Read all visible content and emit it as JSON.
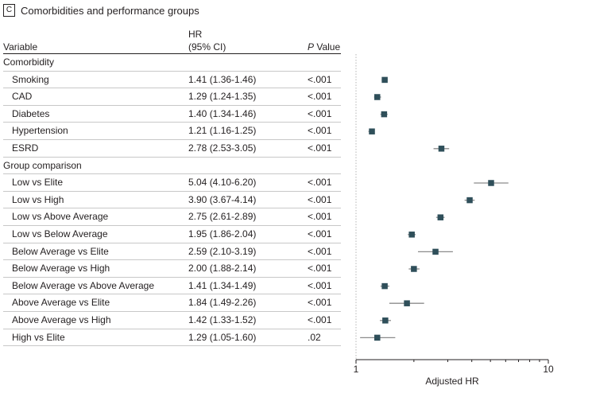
{
  "panel": {
    "letter": "C",
    "title": "Comorbidities and performance groups"
  },
  "table": {
    "headers": {
      "variable": "Variable",
      "hr_line1": "HR",
      "hr_line2": "(95% CI)",
      "p_italic": "P",
      "p_rest": " Value"
    },
    "rows": [
      {
        "type": "section",
        "label": "Comorbidity"
      },
      {
        "type": "item",
        "label": "Smoking",
        "hr_text": "1.41 (1.36-1.46)",
        "p": "<.001"
      },
      {
        "type": "item",
        "label": "CAD",
        "hr_text": "1.29 (1.24-1.35)",
        "p": "<.001"
      },
      {
        "type": "item",
        "label": "Diabetes",
        "hr_text": "1.40 (1.34-1.46)",
        "p": "<.001"
      },
      {
        "type": "item",
        "label": "Hypertension",
        "hr_text": "1.21 (1.16-1.25)",
        "p": "<.001"
      },
      {
        "type": "item",
        "label": "ESRD",
        "hr_text": "2.78 (2.53-3.05)",
        "p": "<.001"
      },
      {
        "type": "section",
        "label": "Group comparison"
      },
      {
        "type": "item",
        "label": "Low vs Elite",
        "hr_text": "5.04 (4.10-6.20)",
        "p": "<.001"
      },
      {
        "type": "item",
        "label": "Low vs High",
        "hr_text": "3.90 (3.67-4.14)",
        "p": "<.001"
      },
      {
        "type": "item",
        "label": "Low vs Above Average",
        "hr_text": "2.75 (2.61-2.89)",
        "p": "<.001"
      },
      {
        "type": "item",
        "label": "Low vs Below Average",
        "hr_text": "1.95 (1.86-2.04)",
        "p": "<.001"
      },
      {
        "type": "item",
        "label": "Below Average vs Elite",
        "hr_text": "2.59 (2.10-3.19)",
        "p": "<.001"
      },
      {
        "type": "item",
        "label": "Below Average vs High",
        "hr_text": "2.00 (1.88-2.14)",
        "p": "<.001"
      },
      {
        "type": "item",
        "label": "Below Average vs Above Average",
        "hr_text": "1.41 (1.34-1.49)",
        "p": "<.001"
      },
      {
        "type": "item",
        "label": "Above Average vs Elite",
        "hr_text": "1.84 (1.49-2.26)",
        "p": "<.001"
      },
      {
        "type": "item",
        "label": "Above Average vs High",
        "hr_text": "1.42 (1.33-1.52)",
        "p": "<.001"
      },
      {
        "type": "item",
        "label": "High vs Elite",
        "hr_text": "1.29 (1.05-1.60)",
        "p": ".02"
      }
    ]
  },
  "chart_data": {
    "type": "scatter",
    "title": "",
    "xlabel": "Adjusted HR",
    "ylabel": "",
    "xscale": "log",
    "xlim": [
      1,
      10
    ],
    "xticks": [
      {
        "value": 1,
        "label": "1"
      },
      {
        "value": 10,
        "label": "10"
      }
    ],
    "reference_line": 1,
    "grid": false,
    "marker_color": "#2f4f5a",
    "ci_color": "#8c8c8c",
    "points": [
      {
        "label": "Smoking",
        "hr": 1.41,
        "lo": 1.36,
        "hi": 1.46
      },
      {
        "label": "CAD",
        "hr": 1.29,
        "lo": 1.24,
        "hi": 1.35
      },
      {
        "label": "Diabetes",
        "hr": 1.4,
        "lo": 1.34,
        "hi": 1.46
      },
      {
        "label": "Hypertension",
        "hr": 1.21,
        "lo": 1.16,
        "hi": 1.25
      },
      {
        "label": "ESRD",
        "hr": 2.78,
        "lo": 2.53,
        "hi": 3.05
      },
      {
        "label": "Low vs Elite",
        "hr": 5.04,
        "lo": 4.1,
        "hi": 6.2
      },
      {
        "label": "Low vs High",
        "hr": 3.9,
        "lo": 3.67,
        "hi": 4.14
      },
      {
        "label": "Low vs Above Average",
        "hr": 2.75,
        "lo": 2.61,
        "hi": 2.89
      },
      {
        "label": "Low vs Below Average",
        "hr": 1.95,
        "lo": 1.86,
        "hi": 2.04
      },
      {
        "label": "Below Average vs Elite",
        "hr": 2.59,
        "lo": 2.1,
        "hi": 3.19
      },
      {
        "label": "Below Average vs High",
        "hr": 2.0,
        "lo": 1.88,
        "hi": 2.14
      },
      {
        "label": "Below Average vs Above Average",
        "hr": 1.41,
        "lo": 1.34,
        "hi": 1.49
      },
      {
        "label": "Above Average vs Elite",
        "hr": 1.84,
        "lo": 1.49,
        "hi": 2.26
      },
      {
        "label": "Above Average vs High",
        "hr": 1.42,
        "lo": 1.33,
        "hi": 1.52
      },
      {
        "label": "High vs Elite",
        "hr": 1.29,
        "lo": 1.05,
        "hi": 1.6
      }
    ]
  }
}
